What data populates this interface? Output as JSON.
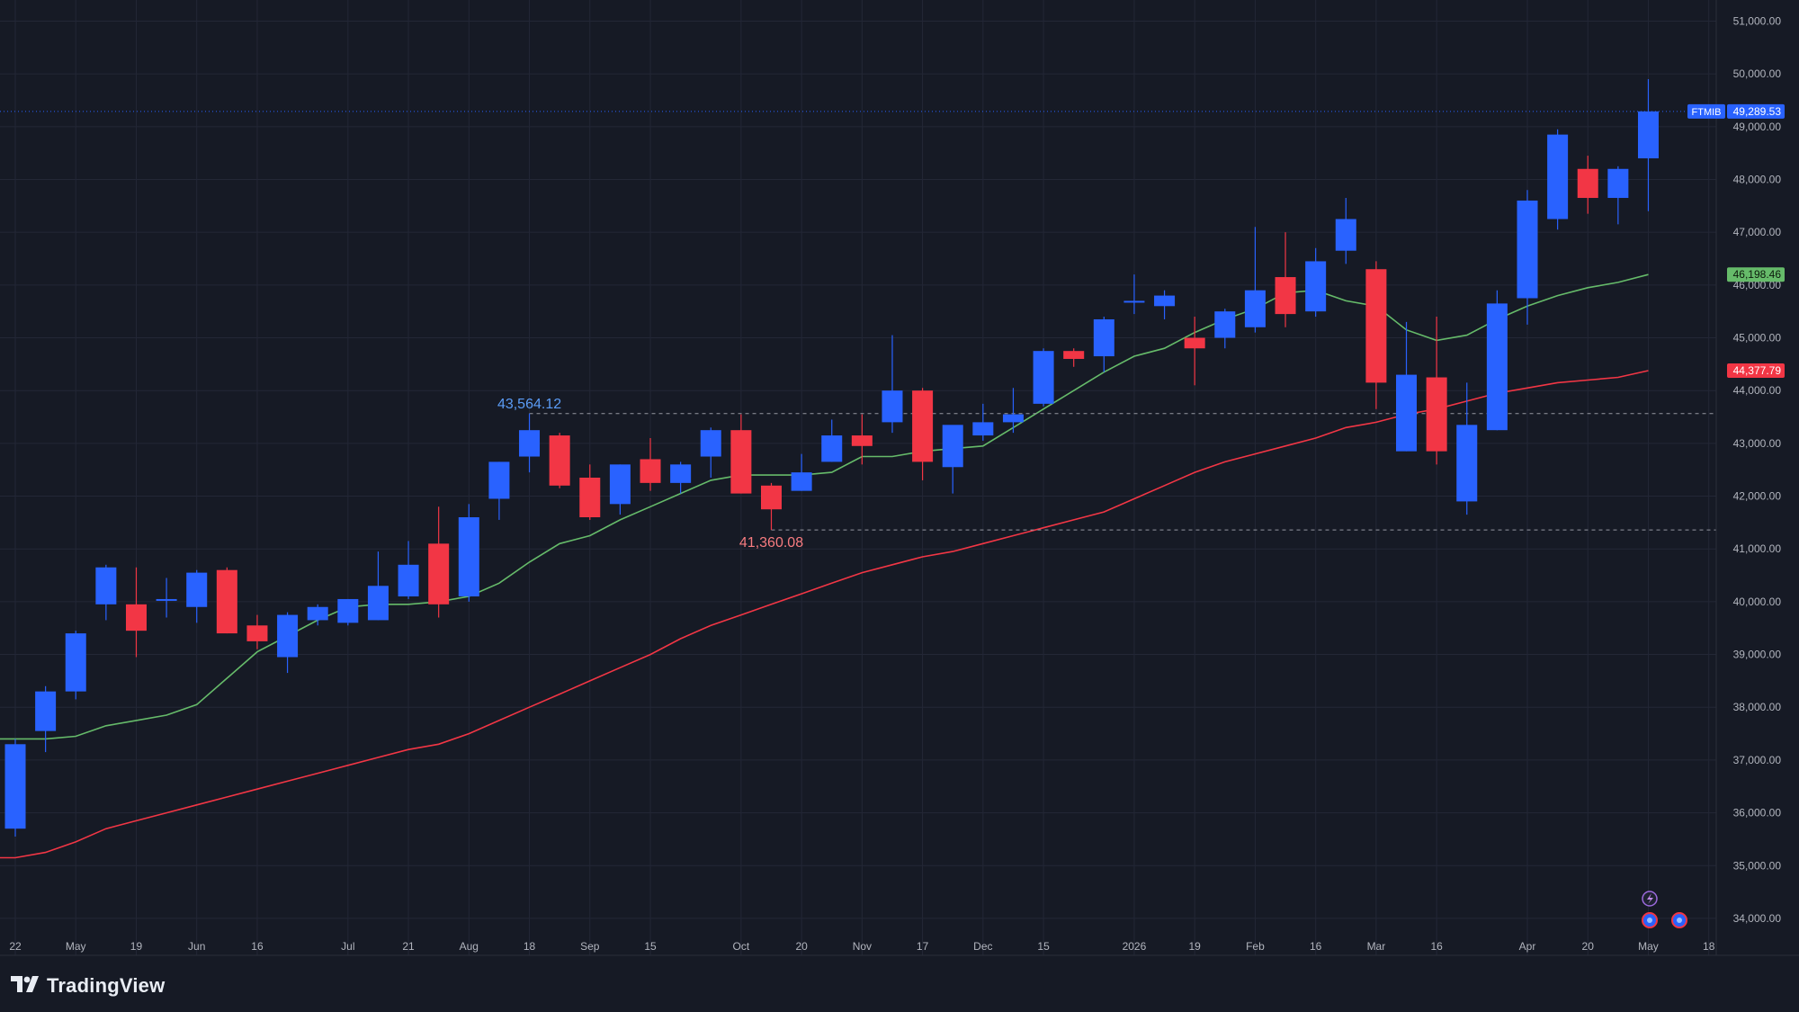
{
  "brand": {
    "name": "TradingView",
    "logo_icon": "tradingview-logo-icon"
  },
  "colors": {
    "background": "#161a25",
    "grid": "#232736",
    "text": "#b2b5be",
    "up": "#2962ff",
    "down": "#f23645",
    "sma_fast": "#66bb6a",
    "sma_slow": "#f23645",
    "high_line": "#5b9cf6",
    "low_line": "#f77c80"
  },
  "chart_data": {
    "type": "candlestick",
    "symbol": "FTMIB",
    "interval": "weekly",
    "last_price": 49289.53,
    "last_price_label": "49,289.53",
    "ylim": [
      33300,
      51400
    ],
    "y_ticks": [
      34000,
      35000,
      36000,
      37000,
      38000,
      39000,
      40000,
      41000,
      42000,
      43000,
      44000,
      45000,
      46000,
      47000,
      48000,
      49000,
      50000,
      51000
    ],
    "y_tick_labels": [
      "34,000.00",
      "35,000.00",
      "36,000.00",
      "37,000.00",
      "38,000.00",
      "39,000.00",
      "40,000.00",
      "41,000.00",
      "42,000.00",
      "43,000.00",
      "44,000.00",
      "45,000.00",
      "46,000.00",
      "47,000.00",
      "48,000.00",
      "49,000.00",
      "50,000.00",
      "51,000.00"
    ],
    "x_labels": [
      {
        "label": "22",
        "bar": 0
      },
      {
        "label": "May",
        "bar": 2
      },
      {
        "label": "19",
        "bar": 4
      },
      {
        "label": "Jun",
        "bar": 6
      },
      {
        "label": "16",
        "bar": 8
      },
      {
        "label": "Jul",
        "bar": 11
      },
      {
        "label": "21",
        "bar": 13
      },
      {
        "label": "Aug",
        "bar": 15
      },
      {
        "label": "18",
        "bar": 17
      },
      {
        "label": "Sep",
        "bar": 19
      },
      {
        "label": "15",
        "bar": 21
      },
      {
        "label": "Oct",
        "bar": 24
      },
      {
        "label": "20",
        "bar": 26
      },
      {
        "label": "Nov",
        "bar": 28
      },
      {
        "label": "17",
        "bar": 30
      },
      {
        "label": "Dec",
        "bar": 32
      },
      {
        "label": "15",
        "bar": 34
      },
      {
        "label": "2026",
        "bar": 37
      },
      {
        "label": "19",
        "bar": 39
      },
      {
        "label": "Feb",
        "bar": 41
      },
      {
        "label": "16",
        "bar": 43
      },
      {
        "label": "Mar",
        "bar": 45
      },
      {
        "label": "16",
        "bar": 47
      },
      {
        "label": "Apr",
        "bar": 50
      },
      {
        "label": "20",
        "bar": 52
      },
      {
        "label": "May",
        "bar": 54
      },
      {
        "label": "18",
        "bar": 56
      }
    ],
    "candles": [
      {
        "o": 35700,
        "h": 37400,
        "l": 35550,
        "c": 37300
      },
      {
        "o": 37550,
        "h": 38400,
        "l": 37150,
        "c": 38300
      },
      {
        "o": 38300,
        "h": 39450,
        "l": 38150,
        "c": 39400
      },
      {
        "o": 39950,
        "h": 40700,
        "l": 39650,
        "c": 40650
      },
      {
        "o": 39950,
        "h": 40650,
        "l": 38950,
        "c": 39450
      },
      {
        "o": 40050,
        "h": 40450,
        "l": 39700,
        "c": 40050
      },
      {
        "o": 39900,
        "h": 40600,
        "l": 39600,
        "c": 40550
      },
      {
        "o": 40600,
        "h": 40650,
        "l": 39400,
        "c": 39400
      },
      {
        "o": 39550,
        "h": 39750,
        "l": 39100,
        "c": 39250
      },
      {
        "o": 38950,
        "h": 39800,
        "l": 38650,
        "c": 39750
      },
      {
        "o": 39650,
        "h": 39950,
        "l": 39550,
        "c": 39900
      },
      {
        "o": 39600,
        "h": 40050,
        "l": 39550,
        "c": 40050
      },
      {
        "o": 39650,
        "h": 40950,
        "l": 39650,
        "c": 40300
      },
      {
        "o": 40100,
        "h": 41150,
        "l": 40050,
        "c": 40700
      },
      {
        "o": 41100,
        "h": 41800,
        "l": 39700,
        "c": 39950
      },
      {
        "o": 40100,
        "h": 41850,
        "l": 40000,
        "c": 41600
      },
      {
        "o": 41950,
        "h": 42650,
        "l": 41550,
        "c": 42650
      },
      {
        "o": 42750,
        "h": 43564.12,
        "l": 42450,
        "c": 43250
      },
      {
        "o": 43150,
        "h": 43200,
        "l": 42150,
        "c": 42200
      },
      {
        "o": 42350,
        "h": 42600,
        "l": 41550,
        "c": 41600
      },
      {
        "o": 41850,
        "h": 42600,
        "l": 41650,
        "c": 42600
      },
      {
        "o": 42700,
        "h": 43100,
        "l": 42100,
        "c": 42250
      },
      {
        "o": 42250,
        "h": 42650,
        "l": 42050,
        "c": 42600
      },
      {
        "o": 42750,
        "h": 43300,
        "l": 42350,
        "c": 43250
      },
      {
        "o": 43250,
        "h": 43550,
        "l": 42050,
        "c": 42050
      },
      {
        "o": 42200,
        "h": 42250,
        "l": 41360.08,
        "c": 41750
      },
      {
        "o": 42100,
        "h": 42800,
        "l": 42100,
        "c": 42450
      },
      {
        "o": 42650,
        "h": 43450,
        "l": 42650,
        "c": 43150
      },
      {
        "o": 43150,
        "h": 43550,
        "l": 42600,
        "c": 42950
      },
      {
        "o": 43400,
        "h": 45050,
        "l": 43200,
        "c": 44000
      },
      {
        "o": 44000,
        "h": 44050,
        "l": 42300,
        "c": 42650
      },
      {
        "o": 42550,
        "h": 43300,
        "l": 42050,
        "c": 43350
      },
      {
        "o": 43150,
        "h": 43750,
        "l": 43050,
        "c": 43400
      },
      {
        "o": 43400,
        "h": 44050,
        "l": 43200,
        "c": 43550
      },
      {
        "o": 43750,
        "h": 44800,
        "l": 43700,
        "c": 44750
      },
      {
        "o": 44750,
        "h": 44800,
        "l": 44450,
        "c": 44600
      },
      {
        "o": 44650,
        "h": 45400,
        "l": 44350,
        "c": 45350
      },
      {
        "o": 45700,
        "h": 46200,
        "l": 45450,
        "c": 45700
      },
      {
        "o": 45600,
        "h": 45900,
        "l": 45350,
        "c": 45800
      },
      {
        "o": 45000,
        "h": 45400,
        "l": 44100,
        "c": 44800
      },
      {
        "o": 45000,
        "h": 45550,
        "l": 44800,
        "c": 45500
      },
      {
        "o": 45200,
        "h": 47100,
        "l": 45100,
        "c": 45900
      },
      {
        "o": 46150,
        "h": 47000,
        "l": 45200,
        "c": 45450
      },
      {
        "o": 45500,
        "h": 46700,
        "l": 45400,
        "c": 46450
      },
      {
        "o": 46650,
        "h": 47650,
        "l": 46400,
        "c": 47250
      },
      {
        "o": 46300,
        "h": 46450,
        "l": 43650,
        "c": 44150
      },
      {
        "o": 42850,
        "h": 45300,
        "l": 42850,
        "c": 44300
      },
      {
        "o": 44250,
        "h": 45400,
        "l": 42600,
        "c": 42850
      },
      {
        "o": 41900,
        "h": 44150,
        "l": 41650,
        "c": 43350
      },
      {
        "o": 43250,
        "h": 45900,
        "l": 43250,
        "c": 45650
      },
      {
        "o": 45750,
        "h": 47800,
        "l": 45250,
        "c": 47600
      },
      {
        "o": 47250,
        "h": 48950,
        "l": 47050,
        "c": 48850
      },
      {
        "o": 48200,
        "h": 48450,
        "l": 47350,
        "c": 47650
      },
      {
        "o": 47650,
        "h": 48250,
        "l": 47150,
        "c": 48200
      },
      {
        "o": 48400,
        "h": 49900,
        "l": 47400,
        "c": 49289.53
      }
    ],
    "series": [
      {
        "ma_kind": "fast",
        "color": "#66bb6a",
        "last_label": "46,198.46",
        "values": [
          37400,
          37400,
          37450,
          37650,
          37750,
          37850,
          38050,
          38550,
          39050,
          39350,
          39650,
          39900,
          39950,
          39950,
          40000,
          40100,
          40350,
          40750,
          41100,
          41250,
          41550,
          41800,
          42050,
          42300,
          42400,
          42400,
          42400,
          42450,
          42750,
          42750,
          42850,
          42900,
          42950,
          43300,
          43650,
          44000,
          44350,
          44650,
          44800,
          45100,
          45350,
          45550,
          45850,
          45900,
          45700,
          45600,
          45150,
          44950,
          45050,
          45350,
          45600,
          45800,
          45950,
          46050,
          46198.46
        ]
      },
      {
        "ma_kind": "slow",
        "color": "#f23645",
        "last_label": "44,377.79",
        "values": [
          35150,
          35250,
          35450,
          35700,
          35850,
          36000,
          36150,
          36300,
          36450,
          36600,
          36750,
          36900,
          37050,
          37200,
          37300,
          37500,
          37750,
          38000,
          38250,
          38500,
          38750,
          39000,
          39300,
          39550,
          39750,
          39950,
          40150,
          40350,
          40550,
          40700,
          40850,
          40950,
          41100,
          41250,
          41400,
          41550,
          41700,
          41950,
          42200,
          42450,
          42650,
          42800,
          42950,
          43100,
          43300,
          43400,
          43550,
          43650,
          43800,
          43950,
          44050,
          44150,
          44200,
          44250,
          44377.79
        ]
      }
    ],
    "annotations": [
      {
        "type": "high",
        "label": "43,564.12",
        "value": 43564.12,
        "bar": 17
      },
      {
        "type": "low",
        "label": "41,360.08",
        "value": 41360.08,
        "bar": 25
      }
    ]
  }
}
